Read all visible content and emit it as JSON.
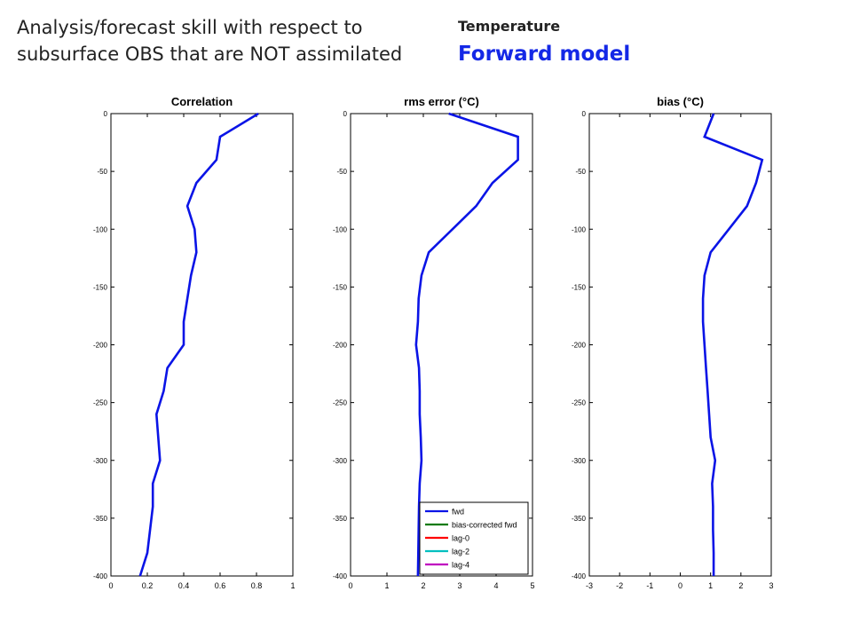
{
  "slide": {
    "headline_line1": "Analysis/forecast skill with respect to",
    "headline_line2": "subsurface OBS that are NOT assimilated",
    "variable": "Temperature",
    "model": "Forward model"
  },
  "colors": {
    "fwd": "#0a14e6",
    "bias_corrected_fwd": "#0a7a0a",
    "lag_0": "#ff0000",
    "lag_2": "#00bfbf",
    "lag_4": "#bf00bf",
    "model_label": "#1428e6"
  },
  "chart_data": [
    {
      "type": "line",
      "title": "Correlation",
      "xlim": [
        0,
        1
      ],
      "ylim": [
        -400,
        0
      ],
      "xticks": [
        0,
        0.2,
        0.4,
        0.6,
        0.8,
        1
      ],
      "xtick_labels": [
        "0",
        "0.2",
        "0.4",
        "0.6",
        "0.8",
        "1"
      ],
      "yticks": [
        0,
        -50,
        -100,
        -150,
        -200,
        -250,
        -300,
        -350,
        -400
      ],
      "ytick_labels": [
        "0",
        "-50",
        "-100",
        "-150",
        "-200",
        "-250",
        "-300",
        "-350",
        "-400"
      ],
      "series": [
        {
          "name": "fwd",
          "y": [
            0,
            -20,
            -40,
            -60,
            -80,
            -100,
            -120,
            -140,
            -180,
            -200,
            -220,
            -240,
            -260,
            -300,
            -320,
            -340,
            -380,
            -400
          ],
          "x": [
            0.81,
            0.6,
            0.58,
            0.47,
            0.42,
            0.46,
            0.47,
            0.44,
            0.4,
            0.4,
            0.31,
            0.29,
            0.25,
            0.27,
            0.23,
            0.23,
            0.2,
            0.16
          ]
        }
      ]
    },
    {
      "type": "line",
      "title": "rms error (°C)",
      "xlim": [
        0,
        5
      ],
      "ylim": [
        -400,
        0
      ],
      "xticks": [
        0,
        1,
        2,
        3,
        4,
        5
      ],
      "xtick_labels": [
        "0",
        "1",
        "2",
        "3",
        "4",
        "5"
      ],
      "yticks": [
        0,
        -50,
        -100,
        -150,
        -200,
        -250,
        -300,
        -350,
        -400
      ],
      "ytick_labels": [
        "0",
        "-50",
        "-100",
        "-150",
        "-200",
        "-250",
        "-300",
        "-350",
        "-400"
      ],
      "legend": {
        "position": "lower-right",
        "entries": [
          "fwd",
          "bias-corrected fwd",
          "lag-0",
          "lag-2",
          "lag-4"
        ]
      },
      "series": [
        {
          "name": "fwd",
          "y": [
            0,
            -20,
            -40,
            -60,
            -80,
            -100,
            -120,
            -140,
            -160,
            -180,
            -200,
            -220,
            -240,
            -260,
            -280,
            -300,
            -320,
            -340,
            -360,
            -380,
            -400
          ],
          "x": [
            2.7,
            4.6,
            4.6,
            3.9,
            3.45,
            2.8,
            2.15,
            1.95,
            1.87,
            1.85,
            1.8,
            1.88,
            1.9,
            1.9,
            1.93,
            1.95,
            1.9,
            1.88,
            1.87,
            1.86,
            1.85
          ]
        }
      ]
    },
    {
      "type": "line",
      "title": "bias (°C)",
      "xlim": [
        -3,
        3
      ],
      "ylim": [
        -400,
        0
      ],
      "xticks": [
        -3,
        -2,
        -1,
        0,
        1,
        2,
        3
      ],
      "xtick_labels": [
        "-3",
        "-2",
        "-1",
        "0",
        "1",
        "2",
        "3"
      ],
      "yticks": [
        0,
        -50,
        -100,
        -150,
        -200,
        -250,
        -300,
        -350,
        -400
      ],
      "ytick_labels": [
        "0",
        "-50",
        "-100",
        "-150",
        "-200",
        "-250",
        "-300",
        "-350",
        "-400"
      ],
      "series": [
        {
          "name": "fwd",
          "y": [
            0,
            -20,
            -40,
            -60,
            -80,
            -100,
            -120,
            -140,
            -160,
            -180,
            -200,
            -220,
            -240,
            -260,
            -280,
            -300,
            -320,
            -340,
            -360,
            -380,
            -400
          ],
          "x": [
            1.1,
            0.8,
            2.7,
            2.5,
            2.2,
            1.6,
            1.0,
            0.8,
            0.75,
            0.75,
            0.8,
            0.85,
            0.9,
            0.95,
            1.0,
            1.15,
            1.05,
            1.08,
            1.08,
            1.1,
            1.1
          ]
        }
      ]
    }
  ]
}
